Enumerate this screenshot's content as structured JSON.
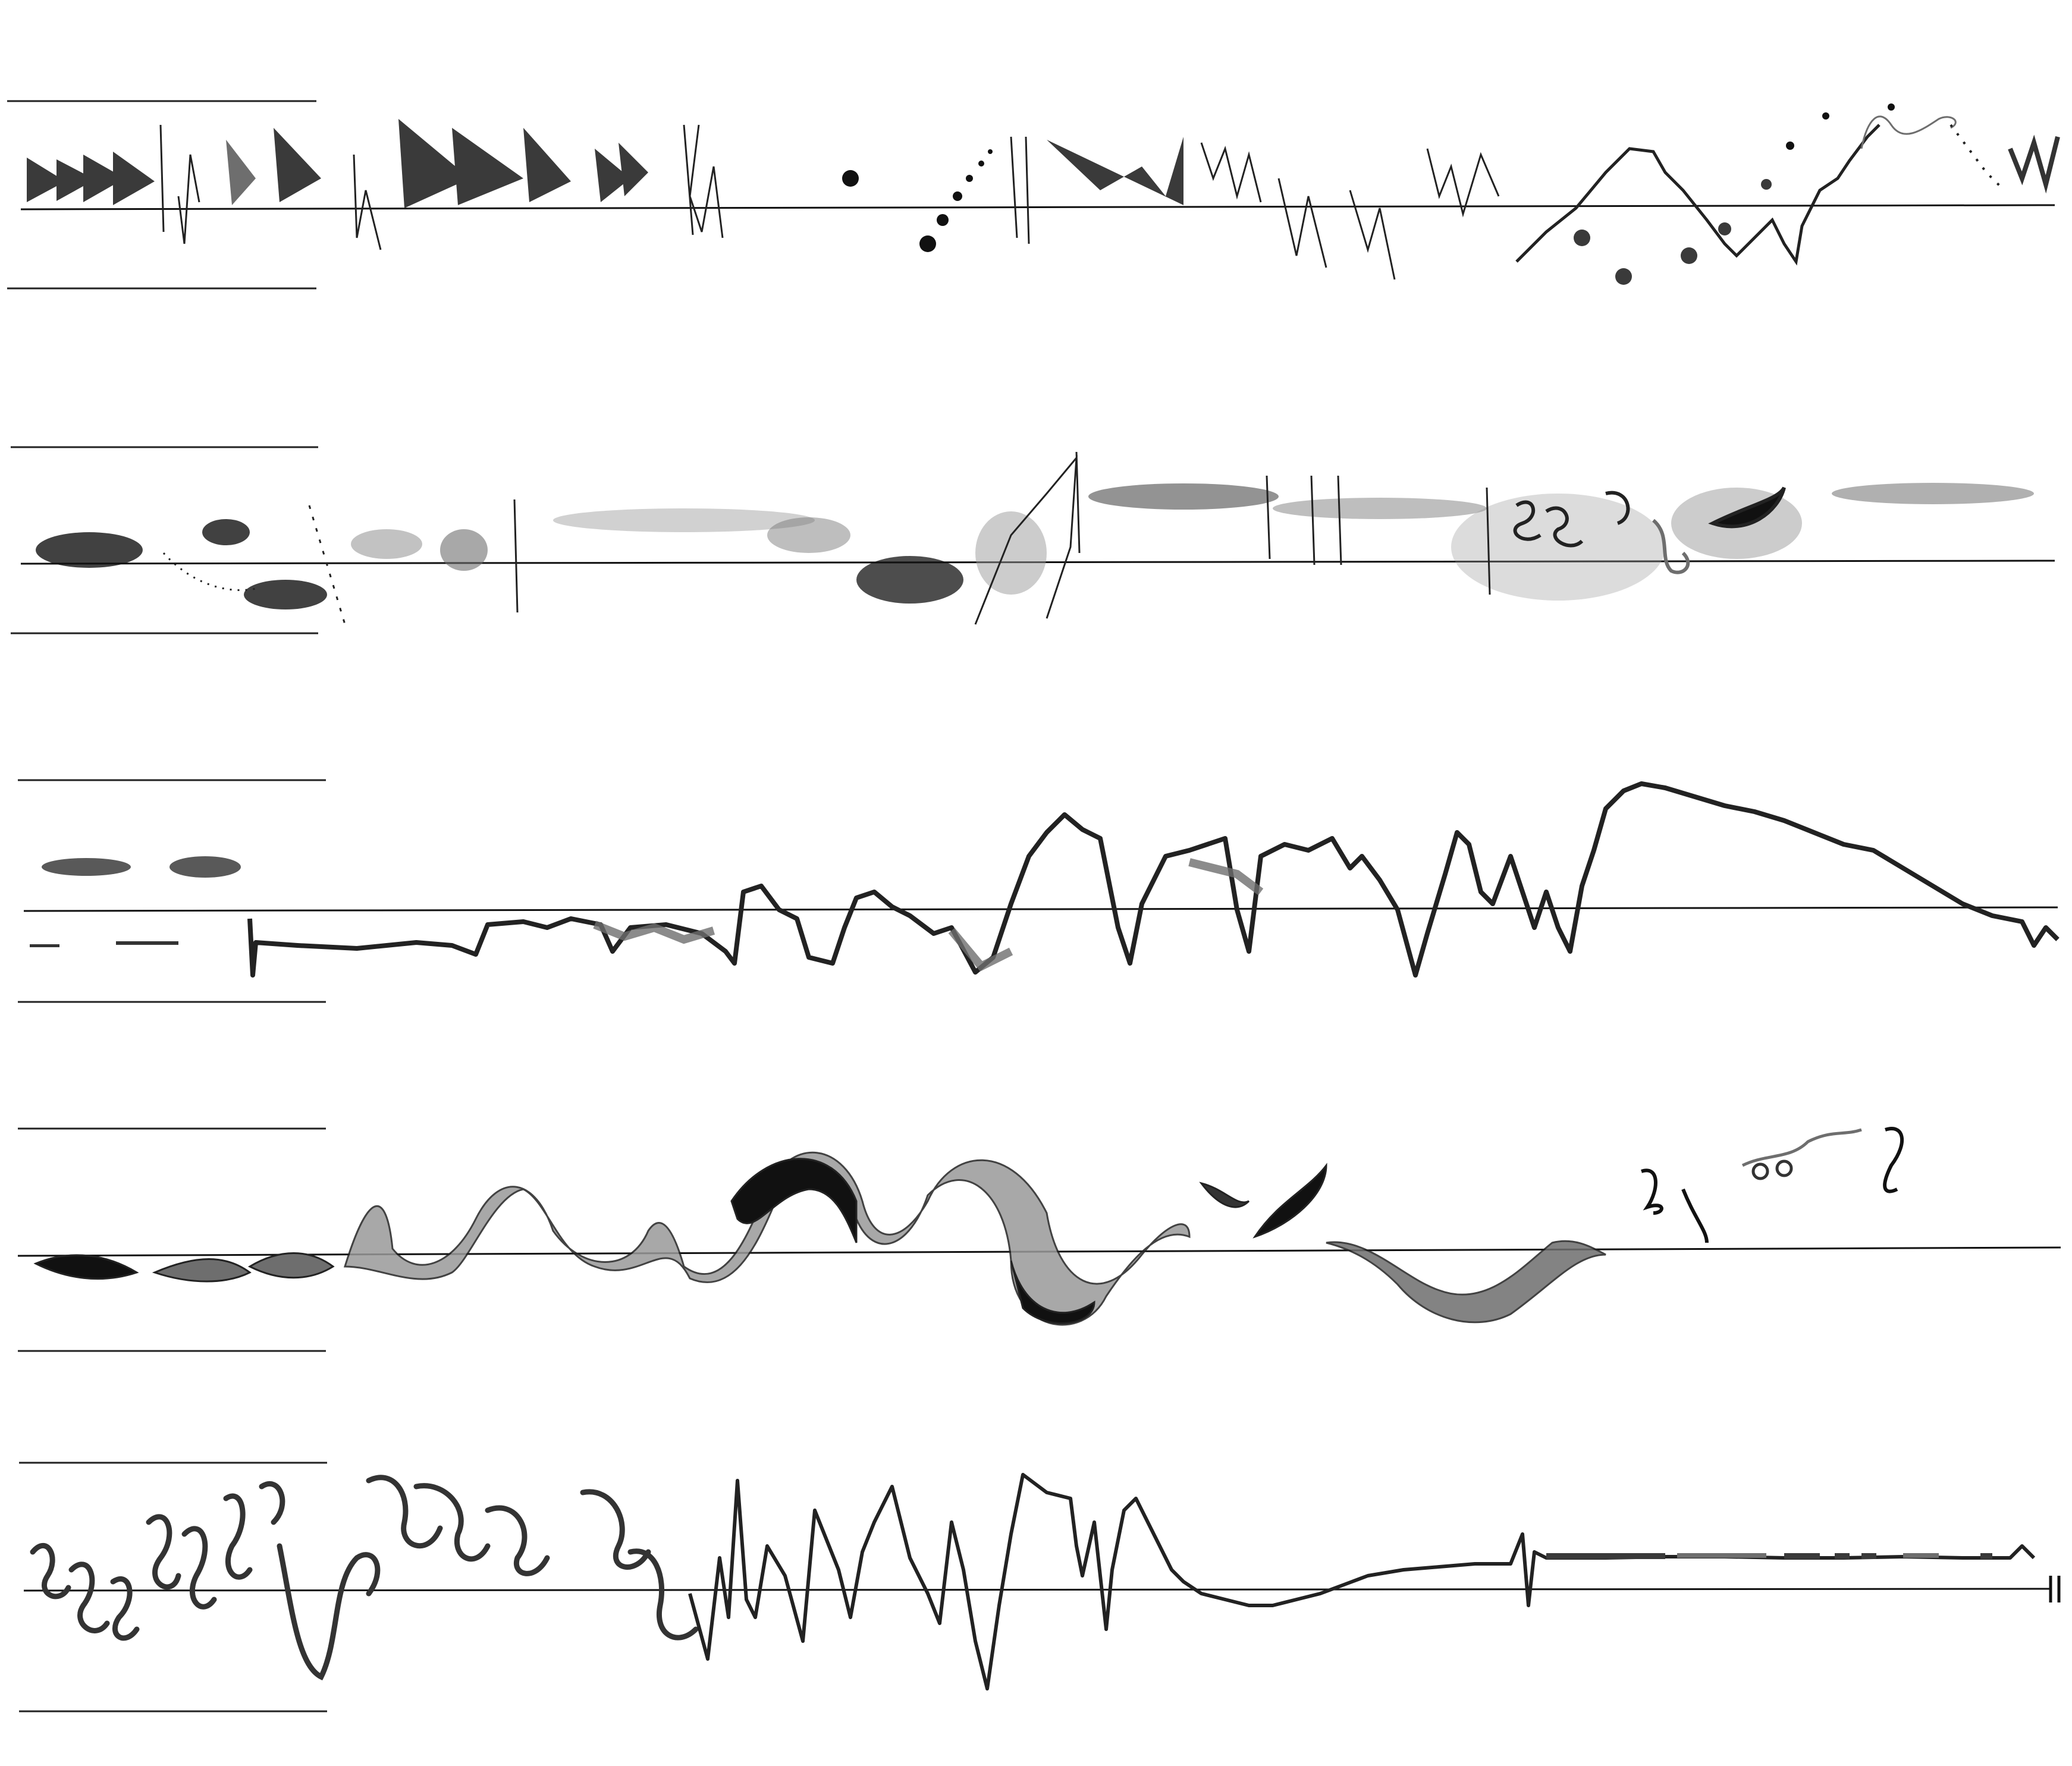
{
  "score": {
    "system_count": 5,
    "ink": {
      "black": "#111111",
      "dark_gray": "#3a3a3a",
      "mid_gray": "#6e6e6e",
      "light_gray": "#9a9a9a",
      "paper": "#ffffff"
    },
    "systems": [
      {
        "id": 1,
        "texture": "wedges-and-spikes"
      },
      {
        "id": 2,
        "texture": "stippled-clouds"
      },
      {
        "id": 3,
        "texture": "jagged-contour"
      },
      {
        "id": 4,
        "texture": "ribbon-waves"
      },
      {
        "id": 5,
        "texture": "curls-zigzags-tail"
      }
    ],
    "final_barline": "double-bar"
  }
}
